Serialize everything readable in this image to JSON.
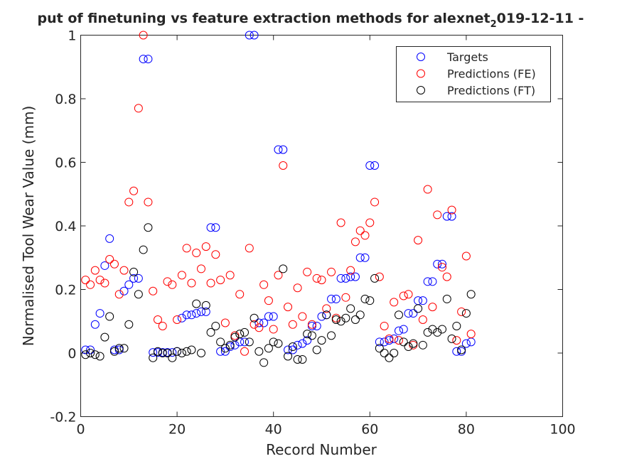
{
  "chart_data": {
    "type": "scatter",
    "title_main": "put of finetuning vs feature extraction methods for alexnet",
    "title_sub": "2",
    "title_rest": "019-12-11 -",
    "xlabel": "Record Number",
    "ylabel": "Normalised Tool Wear Value (mm)",
    "xlim": [
      0,
      100
    ],
    "ylim": [
      -0.2,
      1
    ],
    "xticks": [
      "0",
      "20",
      "40",
      "60",
      "80",
      "100"
    ],
    "yticks": [
      "-0.2",
      "0",
      "0.2",
      "0.4",
      "0.6",
      "0.8",
      "1"
    ],
    "legend_position": "top-right",
    "grid": false,
    "series": [
      {
        "name": "Targets",
        "color": "#0000ff",
        "x": [
          1,
          2,
          3,
          4,
          5,
          6,
          7,
          8,
          9,
          10,
          11,
          12,
          13,
          14,
          15,
          16,
          17,
          18,
          19,
          20,
          21,
          22,
          23,
          24,
          25,
          26,
          27,
          28,
          29,
          30,
          31,
          32,
          33,
          34,
          35,
          36,
          37,
          38,
          39,
          40,
          41,
          42,
          43,
          44,
          45,
          46,
          47,
          48,
          49,
          50,
          51,
          52,
          53,
          54,
          55,
          56,
          57,
          58,
          59,
          60,
          61,
          62,
          63,
          64,
          65,
          66,
          67,
          68,
          69,
          70,
          71,
          72,
          73,
          74,
          75,
          76,
          77,
          78,
          79,
          80,
          81
        ],
        "y": [
          0.01,
          0.01,
          0.09,
          0.125,
          0.275,
          0.36,
          0.01,
          0.01,
          0.195,
          0.215,
          0.235,
          0.235,
          0.925,
          0.925,
          0.002,
          0.002,
          0.002,
          0.002,
          0.002,
          0.005,
          0.11,
          0.12,
          0.12,
          0.125,
          0.13,
          0.13,
          0.395,
          0.395,
          0.005,
          0.005,
          0.02,
          0.025,
          0.035,
          0.035,
          1.0,
          1.0,
          0.095,
          0.095,
          0.115,
          0.115,
          0.64,
          0.64,
          0.01,
          0.01,
          0.025,
          0.03,
          0.04,
          0.085,
          0.085,
          0.115,
          0.12,
          0.17,
          0.17,
          0.235,
          0.235,
          0.24,
          0.24,
          0.3,
          0.3,
          0.59,
          0.59,
          0.035,
          0.035,
          0.04,
          0.045,
          0.07,
          0.075,
          0.125,
          0.125,
          0.165,
          0.165,
          0.225,
          0.225,
          0.28,
          0.28,
          0.43,
          0.43,
          0.005,
          0.005,
          0.03,
          0.035
        ]
      },
      {
        "name": "Predictions (FE)",
        "color": "#ff0000",
        "x": [
          1,
          2,
          3,
          4,
          5,
          6,
          7,
          8,
          9,
          10,
          11,
          12,
          13,
          14,
          15,
          16,
          17,
          18,
          19,
          20,
          21,
          22,
          23,
          24,
          25,
          26,
          27,
          28,
          29,
          30,
          31,
          32,
          33,
          34,
          35,
          36,
          37,
          38,
          39,
          40,
          41,
          42,
          43,
          44,
          45,
          46,
          47,
          48,
          49,
          50,
          51,
          52,
          53,
          54,
          55,
          56,
          57,
          58,
          59,
          60,
          61,
          62,
          63,
          64,
          65,
          66,
          67,
          68,
          69,
          70,
          71,
          72,
          73,
          74,
          75,
          76,
          77,
          78,
          79,
          80,
          81
        ],
        "y": [
          0.23,
          0.215,
          0.26,
          0.23,
          0.22,
          0.295,
          0.28,
          0.185,
          0.26,
          0.475,
          0.51,
          0.77,
          1.0,
          0.475,
          0.195,
          0.105,
          0.085,
          0.225,
          0.215,
          0.105,
          0.245,
          0.33,
          0.22,
          0.315,
          0.265,
          0.335,
          0.22,
          0.31,
          0.23,
          0.095,
          0.245,
          0.055,
          0.185,
          0.005,
          0.33,
          0.09,
          0.08,
          0.215,
          0.165,
          0.075,
          0.245,
          0.59,
          0.145,
          0.09,
          0.205,
          0.115,
          0.255,
          0.09,
          0.235,
          0.23,
          0.14,
          0.255,
          0.11,
          0.41,
          0.175,
          0.26,
          0.35,
          0.385,
          0.37,
          0.41,
          0.475,
          0.24,
          0.085,
          0.045,
          0.16,
          0.04,
          0.18,
          0.185,
          0.025,
          0.355,
          0.105,
          0.515,
          0.145,
          0.435,
          0.27,
          0.24,
          0.45,
          0.04,
          0.13,
          0.305,
          0.06
        ]
      },
      {
        "name": "Predictions (FT)",
        "color": "#000000",
        "x": [
          1,
          2,
          3,
          4,
          5,
          6,
          7,
          8,
          9,
          10,
          11,
          12,
          13,
          14,
          15,
          16,
          17,
          18,
          19,
          20,
          21,
          22,
          23,
          24,
          25,
          26,
          27,
          28,
          29,
          30,
          31,
          32,
          33,
          34,
          35,
          36,
          37,
          38,
          39,
          40,
          41,
          42,
          43,
          44,
          45,
          46,
          47,
          48,
          49,
          50,
          51,
          52,
          53,
          54,
          55,
          56,
          57,
          58,
          59,
          60,
          61,
          62,
          63,
          64,
          65,
          66,
          67,
          68,
          69,
          70,
          71,
          72,
          73,
          74,
          75,
          76,
          77,
          78,
          79,
          80,
          81
        ],
        "y": [
          -0.005,
          0.0,
          -0.005,
          -0.01,
          0.05,
          0.115,
          0.005,
          0.015,
          0.015,
          0.09,
          0.255,
          0.185,
          0.325,
          0.395,
          -0.015,
          0.005,
          0.0,
          0.0,
          -0.015,
          0.005,
          0.0,
          0.005,
          0.01,
          0.155,
          0.0,
          0.15,
          0.065,
          0.085,
          0.035,
          0.015,
          0.025,
          0.05,
          0.06,
          0.065,
          0.035,
          0.11,
          0.005,
          -0.03,
          0.015,
          0.035,
          0.03,
          0.265,
          -0.01,
          0.02,
          -0.02,
          -0.02,
          0.06,
          0.055,
          0.01,
          0.04,
          0.12,
          0.055,
          0.105,
          0.1,
          0.11,
          0.14,
          0.105,
          0.12,
          0.17,
          0.165,
          0.235,
          0.015,
          0.0,
          -0.015,
          0.0,
          0.12,
          0.035,
          0.02,
          0.03,
          0.14,
          0.025,
          0.065,
          0.075,
          0.065,
          0.075,
          0.17,
          0.045,
          0.085,
          0.01,
          0.125,
          0.185
        ]
      }
    ]
  }
}
